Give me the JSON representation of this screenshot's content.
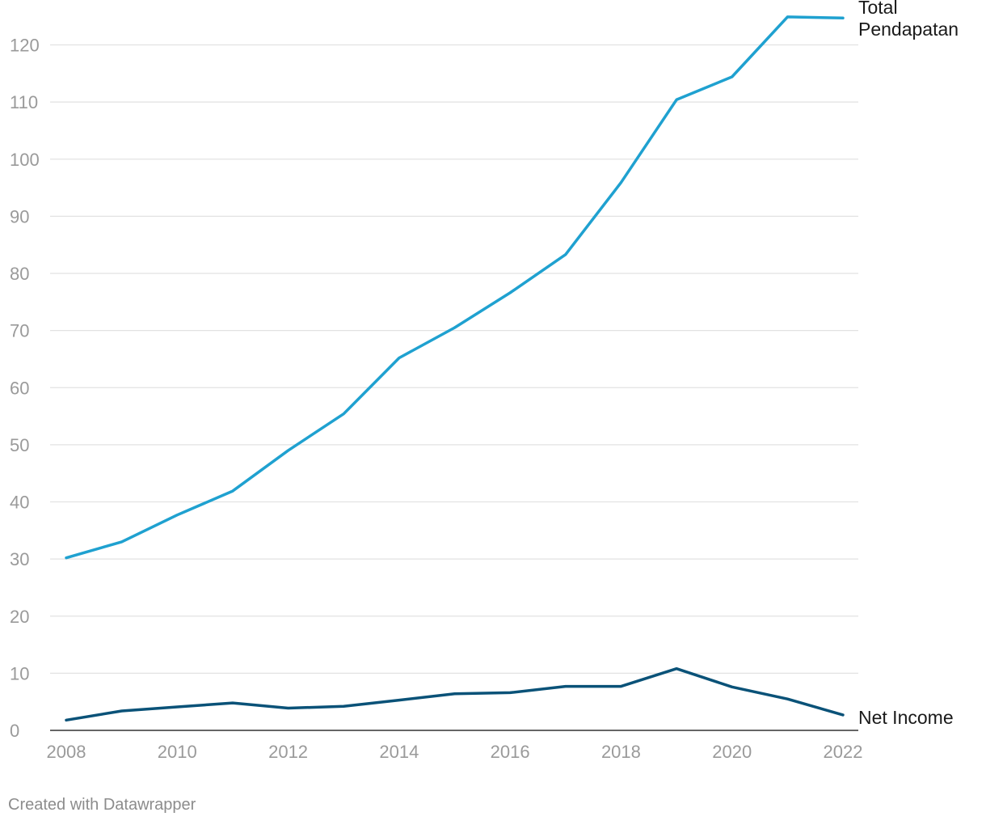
{
  "chart_data": {
    "type": "line",
    "x": [
      2008,
      2009,
      2010,
      2011,
      2012,
      2013,
      2014,
      2015,
      2016,
      2017,
      2018,
      2019,
      2020,
      2021,
      2022
    ],
    "x_ticks": [
      2008,
      2010,
      2012,
      2014,
      2016,
      2018,
      2020,
      2022
    ],
    "y_ticks": [
      0,
      10,
      20,
      30,
      40,
      50,
      60,
      70,
      80,
      90,
      100,
      110,
      120
    ],
    "ylim": [
      0,
      125
    ],
    "xlim": [
      2008,
      2022
    ],
    "grid": true,
    "series": [
      {
        "name": "Total Pendapatan",
        "label_lines": [
          "Total",
          "Pendapatan"
        ],
        "color": "#1fa1d0",
        "values": [
          30.2,
          33.0,
          37.7,
          41.9,
          49.0,
          55.4,
          65.2,
          70.5,
          76.6,
          83.3,
          95.9,
          110.4,
          114.4,
          124.9,
          124.7
        ]
      },
      {
        "name": "Net Income",
        "label_lines": [
          "Net Income"
        ],
        "color": "#0a5278",
        "values": [
          1.8,
          3.4,
          4.1,
          4.8,
          3.9,
          4.2,
          5.3,
          6.4,
          6.6,
          7.7,
          7.7,
          10.8,
          7.6,
          5.5,
          2.7
        ]
      }
    ]
  },
  "footer": {
    "credit": "Created with Datawrapper"
  }
}
